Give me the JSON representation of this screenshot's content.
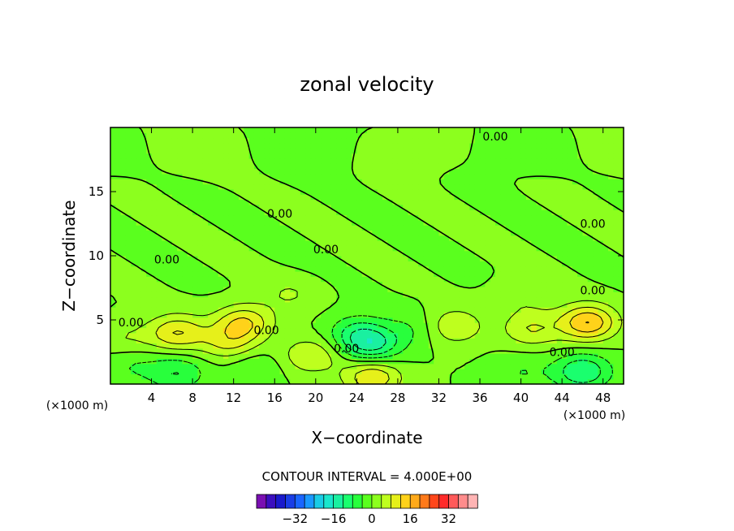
{
  "chart_data": {
    "type": "heatmap",
    "title": "zonal velocity",
    "xlabel": "X−coordinate",
    "ylabel": "Z−coordinate",
    "x_unit_left": "(×1000 m)",
    "x_unit_right": "(×1000 m)",
    "xlim": [
      0,
      50
    ],
    "ylim": [
      0,
      20
    ],
    "x_ticks": [
      4,
      8,
      12,
      16,
      20,
      24,
      28,
      32,
      36,
      40,
      44,
      48
    ],
    "y_ticks": [
      5,
      10,
      15
    ],
    "contour_interval_text": "CONTOUR INTERVAL = 4.000E+00",
    "contour_labels": [
      {
        "text": "0.00",
        "x": 37.5,
        "y": 19.3
      },
      {
        "text": "0.00",
        "x": 16.5,
        "y": 13.3
      },
      {
        "text": "0.00",
        "x": 47.0,
        "y": 12.5
      },
      {
        "text": "0.00",
        "x": 21.0,
        "y": 10.5
      },
      {
        "text": "0.00",
        "x": 5.5,
        "y": 9.7
      },
      {
        "text": "0.00",
        "x": 47.0,
        "y": 7.3
      },
      {
        "text": "0.00",
        "x": 2.0,
        "y": 4.8
      },
      {
        "text": "0.00",
        "x": 15.2,
        "y": 4.2
      },
      {
        "text": "0.00",
        "x": 23.0,
        "y": 2.8
      },
      {
        "text": "0.00",
        "x": 44.0,
        "y": 2.5
      }
    ],
    "features": [
      {
        "x": 6.5,
        "y": 4.0,
        "value": 12
      },
      {
        "x": 13.0,
        "y": 4.8,
        "value": 12
      },
      {
        "x": 11.5,
        "y": 3.2,
        "value": 8
      },
      {
        "x": 19.5,
        "y": 2.2,
        "value": 8
      },
      {
        "x": 41.0,
        "y": 4.3,
        "value": 8
      },
      {
        "x": 46.5,
        "y": 4.8,
        "value": 16
      },
      {
        "x": 33.5,
        "y": 4.5,
        "value": 8
      },
      {
        "x": 25.5,
        "y": 3.0,
        "value": -12
      },
      {
        "x": 24.0,
        "y": 4.0,
        "value": -8
      },
      {
        "x": 29.5,
        "y": 4.3,
        "value": -4
      },
      {
        "x": 6.5,
        "y": 0.9,
        "value": -8
      },
      {
        "x": 14.0,
        "y": 1.2,
        "value": -4
      },
      {
        "x": 46.0,
        "y": 1.0,
        "value": -12
      },
      {
        "x": 40.0,
        "y": 1.0,
        "value": -4
      },
      {
        "x": 2.0,
        "y": 1.5,
        "value": -4
      },
      {
        "x": 17.5,
        "y": 7.0,
        "value": 4
      },
      {
        "x": 40.0,
        "y": 7.0,
        "value": 4
      },
      {
        "x": 1.5,
        "y": 3.5,
        "value": 4
      },
      {
        "x": 25.5,
        "y": 0.6,
        "value": 12
      }
    ],
    "colorbar": {
      "colors": [
        "#7a0fb2",
        "#3b0fbf",
        "#1a1acc",
        "#1a3ee6",
        "#1a66ff",
        "#1a99ff",
        "#1acce6",
        "#1ae6cc",
        "#1af0a0",
        "#1aff6e",
        "#28ff3c",
        "#5aff1e",
        "#8cff1e",
        "#beff1e",
        "#e6f01a",
        "#ffd21a",
        "#ffaa1a",
        "#ff7a1a",
        "#ff461a",
        "#ff2a2a",
        "#ff5a5a",
        "#ff8c8c",
        "#ffb4b4"
      ],
      "levels": [
        -44,
        -40,
        -36,
        -32,
        -28,
        -24,
        -20,
        -16,
        -12,
        -8,
        -4,
        0,
        4,
        8,
        12,
        16,
        20,
        24,
        28,
        32,
        36,
        40
      ],
      "tick_labels": [
        "−32",
        "−16",
        "0",
        "16",
        "32"
      ]
    }
  }
}
